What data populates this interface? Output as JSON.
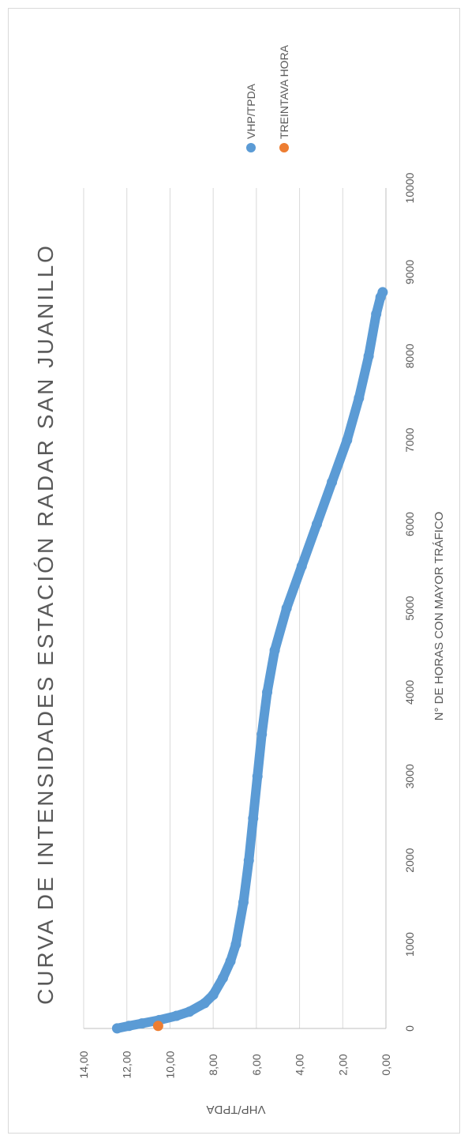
{
  "chart_data": {
    "type": "scatter",
    "title": "CURVA DE INTENSIDADES ESTACIÓN RADAR SAN JUANILLO",
    "xlabel": "N° DE HORAS CON MAYOR TRÁFICO",
    "ylabel": "VHP/TPDA",
    "xlim": [
      0,
      10000
    ],
    "ylim": [
      0,
      14
    ],
    "x_ticks": [
      "0",
      "1000",
      "2000",
      "3000",
      "4000",
      "5000",
      "6000",
      "7000",
      "8000",
      "9000",
      "10000"
    ],
    "y_ticks": [
      "0,00",
      "2,00",
      "4,00",
      "6,00",
      "8,00",
      "10,00",
      "12,00",
      "14,00"
    ],
    "grid": true,
    "legend_position": "right",
    "orientation": "rotated-90",
    "series": [
      {
        "name": "VHP/TPDA",
        "color": "#5b9bd5",
        "points": [
          [
            1,
            12.45
          ],
          [
            30,
            11.9
          ],
          [
            60,
            11.3
          ],
          [
            100,
            10.5
          ],
          [
            150,
            9.7
          ],
          [
            200,
            9.1
          ],
          [
            300,
            8.4
          ],
          [
            400,
            8.0
          ],
          [
            600,
            7.55
          ],
          [
            800,
            7.2
          ],
          [
            1000,
            6.95
          ],
          [
            1500,
            6.6
          ],
          [
            2000,
            6.35
          ],
          [
            2500,
            6.15
          ],
          [
            3000,
            5.95
          ],
          [
            3500,
            5.75
          ],
          [
            4000,
            5.5
          ],
          [
            4500,
            5.15
          ],
          [
            5000,
            4.6
          ],
          [
            5500,
            3.9
          ],
          [
            6000,
            3.2
          ],
          [
            6500,
            2.5
          ],
          [
            7000,
            1.8
          ],
          [
            7500,
            1.25
          ],
          [
            8000,
            0.8
          ],
          [
            8500,
            0.45
          ],
          [
            8700,
            0.25
          ],
          [
            8760,
            0.15
          ]
        ]
      },
      {
        "name": "TREINTAVA HORA",
        "color": "#ed7d31",
        "points": [
          [
            30,
            10.55
          ]
        ]
      }
    ]
  }
}
